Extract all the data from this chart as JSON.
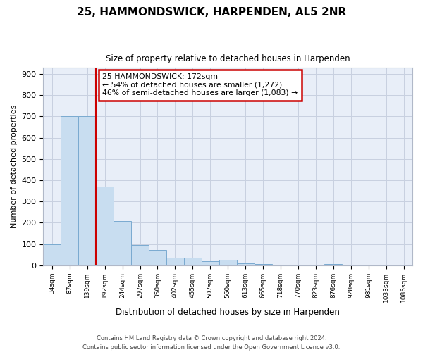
{
  "title": "25, HAMMONDSWICK, HARPENDEN, AL5 2NR",
  "subtitle": "Size of property relative to detached houses in Harpenden",
  "xlabel": "Distribution of detached houses by size in Harpenden",
  "ylabel": "Number of detached properties",
  "bin_labels": [
    "34sqm",
    "87sqm",
    "139sqm",
    "192sqm",
    "244sqm",
    "297sqm",
    "350sqm",
    "402sqm",
    "455sqm",
    "507sqm",
    "560sqm",
    "613sqm",
    "665sqm",
    "718sqm",
    "770sqm",
    "823sqm",
    "876sqm",
    "928sqm",
    "981sqm",
    "1033sqm",
    "1086sqm"
  ],
  "bar_heights": [
    100,
    700,
    700,
    370,
    207,
    95,
    72,
    35,
    35,
    20,
    25,
    10,
    5,
    0,
    0,
    0,
    5,
    0,
    0,
    0,
    0
  ],
  "bar_color": "#c8ddf0",
  "bar_edge_color": "#7aaad0",
  "marker_color": "#cc0000",
  "annotation_line1": "25 HAMMONDSWICK: 172sqm",
  "annotation_line2": "← 54% of detached houses are smaller (1,272)",
  "annotation_line3": "46% of semi-detached houses are larger (1,083) →",
  "annotation_box_color": "#ffffff",
  "annotation_box_edge": "#cc0000",
  "ylim": [
    0,
    930
  ],
  "yticks": [
    0,
    100,
    200,
    300,
    400,
    500,
    600,
    700,
    800,
    900
  ],
  "background_color": "#ffffff",
  "plot_bg_color": "#e8eef8",
  "grid_color": "#c8d0e0",
  "footer_line1": "Contains HM Land Registry data © Crown copyright and database right 2024.",
  "footer_line2": "Contains public sector information licensed under the Open Government Licence v3.0."
}
